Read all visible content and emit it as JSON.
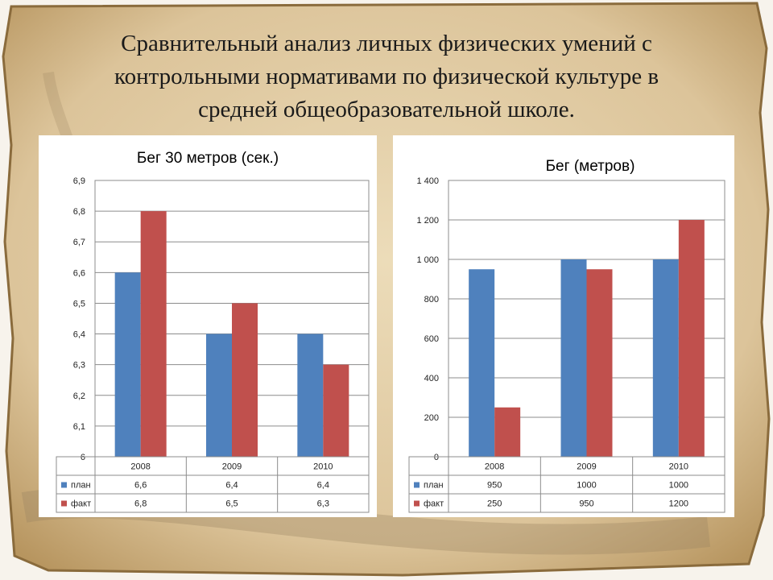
{
  "slide": {
    "title_lines": [
      "Сравнительный анализ личных физических умений с",
      "контрольными нормативами по физической культуре в",
      "средней общеобразовательной школе."
    ]
  },
  "colors": {
    "series_plan": "#4F81BD",
    "series_fact": "#C0504D"
  },
  "chart_data": [
    {
      "type": "bar",
      "title": "Бег 30 метров (сек.)",
      "categories": [
        "2008",
        "2009",
        "2010"
      ],
      "ylim": [
        6,
        6.9
      ],
      "yticks": [
        "6",
        "6,1",
        "6,2",
        "6,3",
        "6,4",
        "6,5",
        "6,6",
        "6,7",
        "6,8",
        "6,9"
      ],
      "grid": true,
      "legend": "data-table",
      "series": [
        {
          "name": "план",
          "values": [
            6.6,
            6.4,
            6.4
          ],
          "labels": [
            "6,6",
            "6,4",
            "6,4"
          ]
        },
        {
          "name": "факт",
          "values": [
            6.8,
            6.5,
            6.3
          ],
          "labels": [
            "6,8",
            "6,5",
            "6,3"
          ]
        }
      ]
    },
    {
      "type": "bar",
      "title": "Бег (метров)",
      "categories": [
        "2008",
        "2009",
        "2010"
      ],
      "ylim": [
        0,
        1400
      ],
      "yticks": [
        "0",
        "200",
        "400",
        "600",
        "800",
        "1 000",
        "1 200",
        "1 400"
      ],
      "grid": true,
      "legend": "data-table",
      "series": [
        {
          "name": "план",
          "values": [
            950,
            1000,
            1000
          ],
          "labels": [
            "950",
            "1000",
            "1000"
          ]
        },
        {
          "name": "факт",
          "values": [
            250,
            950,
            1200
          ],
          "labels": [
            "250",
            "950",
            "1200"
          ]
        }
      ]
    }
  ]
}
